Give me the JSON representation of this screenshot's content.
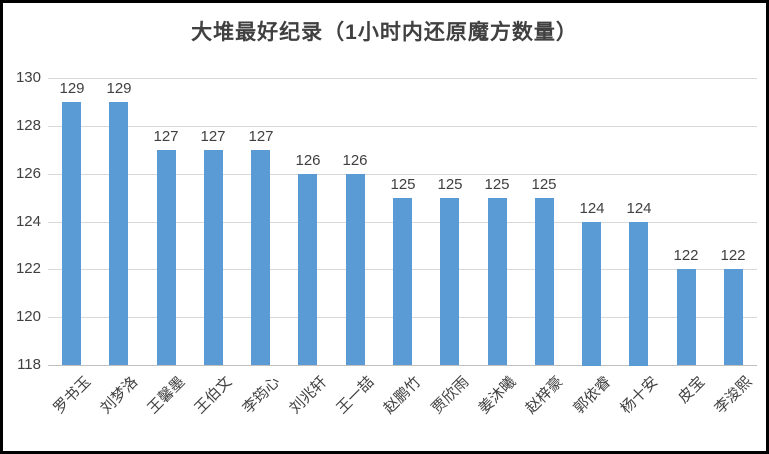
{
  "frame": {
    "background": "#ffffff",
    "border_color": "#000000"
  },
  "chart_data": {
    "type": "bar",
    "title": "大堆最好纪录（1小时内还原魔方数量）",
    "categories": [
      "罗书玉",
      "刘梦洛",
      "王馨墨",
      "王伯文",
      "李筠心",
      "刘兆轩",
      "王一喆",
      "赵鹏竹",
      "贾欣雨",
      "姜沐曦",
      "赵梓豪",
      "郭依睿",
      "杨十安",
      "皮宝",
      "李浚熙"
    ],
    "values": [
      129,
      129,
      127,
      127,
      127,
      126,
      126,
      125,
      125,
      125,
      125,
      124,
      124,
      122,
      122
    ],
    "value_labels_shown": true,
    "xlabel": "",
    "ylabel": "",
    "ylim": [
      118,
      130
    ],
    "yticks": [
      118,
      120,
      122,
      124,
      126,
      128,
      130
    ],
    "grid": true,
    "legend": "none",
    "bar_color": "#5B9BD5",
    "gridline_color": "#D9D9D9",
    "axis_line_color": "#BFBFBF",
    "text_color": "#404040"
  }
}
